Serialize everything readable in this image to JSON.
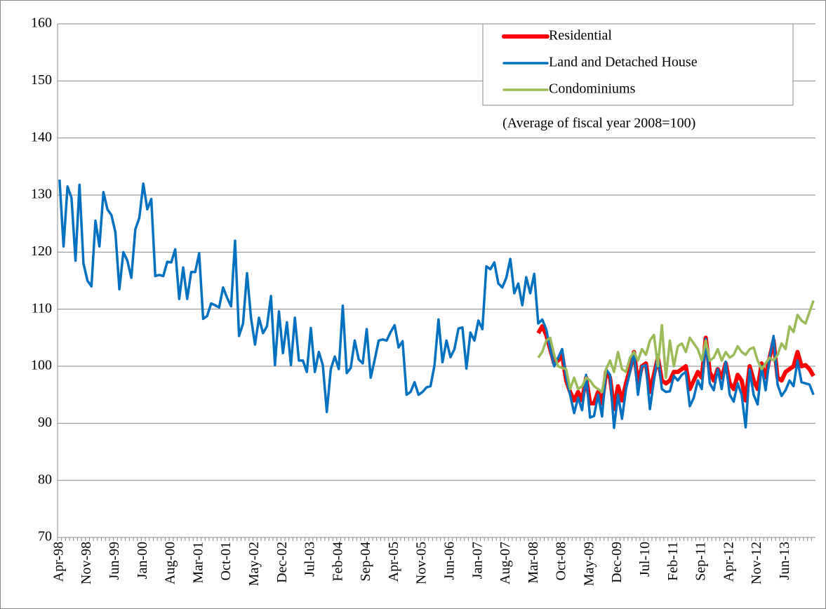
{
  "chart_data": {
    "type": "line",
    "annotation": "(Average of fiscal year 2008=100)",
    "categories": [
      "Apr-98",
      null,
      null,
      null,
      null,
      null,
      null,
      "Nov-98",
      null,
      null,
      null,
      null,
      null,
      null,
      "Jun-99",
      null,
      null,
      null,
      null,
      null,
      null,
      "Jan-00",
      null,
      null,
      null,
      null,
      null,
      null,
      "Aug-00",
      null,
      null,
      null,
      null,
      null,
      null,
      "Mar-01",
      null,
      null,
      null,
      null,
      null,
      null,
      "Oct-01",
      null,
      null,
      null,
      null,
      null,
      null,
      "May-02",
      null,
      null,
      null,
      null,
      null,
      null,
      "Dec-02",
      null,
      null,
      null,
      null,
      null,
      null,
      "Jul-03",
      null,
      null,
      null,
      null,
      null,
      null,
      "Feb-04",
      null,
      null,
      null,
      null,
      null,
      null,
      "Sep-04",
      null,
      null,
      null,
      null,
      null,
      null,
      "Apr-05",
      null,
      null,
      null,
      null,
      null,
      null,
      "Nov-05",
      null,
      null,
      null,
      null,
      null,
      null,
      "Jun-06",
      null,
      null,
      null,
      null,
      null,
      null,
      "Jan-07",
      null,
      null,
      null,
      null,
      null,
      null,
      "Aug-07",
      null,
      null,
      null,
      null,
      null,
      null,
      "Mar-08",
      null,
      null,
      null,
      null,
      null,
      null,
      "Oct-08",
      null,
      null,
      null,
      null,
      null,
      null,
      "May-09",
      null,
      null,
      null,
      null,
      null,
      null,
      "Dec-09",
      null,
      null,
      null,
      null,
      null,
      null,
      "Jul-10",
      null,
      null,
      null,
      null,
      null,
      null,
      "Feb-11",
      null,
      null,
      null,
      null,
      null,
      null,
      "Sep-11",
      null,
      null,
      null,
      null,
      null,
      null,
      "Apr-12",
      null,
      null,
      null,
      null,
      null,
      null,
      "Nov-12",
      null,
      null,
      null,
      null,
      null,
      null,
      "Jun-13",
      null,
      null,
      null,
      null,
      null,
      null,
      null
    ],
    "series": [
      {
        "name": "Residential",
        "color": "#ff0000",
        "width": 6,
        "values": [
          null,
          null,
          null,
          null,
          null,
          null,
          null,
          null,
          null,
          null,
          null,
          null,
          null,
          null,
          null,
          null,
          null,
          null,
          null,
          null,
          null,
          null,
          null,
          null,
          null,
          null,
          null,
          null,
          null,
          null,
          null,
          null,
          null,
          null,
          null,
          null,
          null,
          null,
          null,
          null,
          null,
          null,
          null,
          null,
          null,
          null,
          null,
          null,
          null,
          null,
          null,
          null,
          null,
          null,
          null,
          null,
          null,
          null,
          null,
          null,
          null,
          null,
          null,
          null,
          null,
          null,
          null,
          null,
          null,
          null,
          null,
          null,
          null,
          null,
          null,
          null,
          null,
          null,
          null,
          null,
          null,
          null,
          null,
          null,
          null,
          null,
          null,
          null,
          null,
          null,
          null,
          null,
          null,
          null,
          null,
          null,
          null,
          null,
          null,
          null,
          null,
          null,
          null,
          null,
          null,
          null,
          null,
          null,
          null,
          null,
          null,
          null,
          null,
          null,
          null,
          null,
          null,
          null,
          null,
          null,
          105.8,
          107,
          105.5,
          103,
          100.5,
          101,
          102,
          97.5,
          95.5,
          94,
          95.5,
          94,
          98,
          93.5,
          93.5,
          95.5,
          93.5,
          99,
          98,
          92.5,
          96.5,
          94,
          97,
          99.5,
          102.5,
          97,
          100,
          100.5,
          95.5,
          98.5,
          101.5,
          97.5,
          97,
          97.5,
          99,
          99,
          99.5,
          100,
          96,
          97.5,
          99,
          98,
          105,
          99,
          97.5,
          99.5,
          98,
          100.5,
          97,
          96,
          98.5,
          97.5,
          94,
          100,
          97.5,
          96,
          100.5,
          98,
          101.5,
          104.5,
          98,
          97.5,
          99,
          99.5,
          100,
          102.5,
          100,
          100.2,
          99.5,
          98.3
        ]
      },
      {
        "name": "Land and Detached House",
        "color": "#0070c0",
        "width": 3.5,
        "values": [
          132.7,
          121,
          131.5,
          129.5,
          118.5,
          131.8,
          118,
          115,
          114,
          125.5,
          121,
          130.5,
          127.5,
          126.5,
          123.5,
          113.5,
          120,
          118.5,
          115.5,
          124,
          126,
          132,
          127.5,
          129.3,
          115.8,
          116,
          115.8,
          118.3,
          118.2,
          120.5,
          111.8,
          117.3,
          111.8,
          116.5,
          116.5,
          119.8,
          108.3,
          108.8,
          111,
          110.7,
          110.3,
          113.8,
          112,
          110.5,
          122,
          105.3,
          107.5,
          116.3,
          108.5,
          103.8,
          108.5,
          105.8,
          107,
          112.3,
          100.2,
          109.6,
          102.3,
          107.7,
          100.2,
          108.5,
          101,
          101,
          99,
          106.7,
          99,
          102.5,
          100.2,
          92,
          99.5,
          101.7,
          99.5,
          110.6,
          98.8,
          99.7,
          104.5,
          101.2,
          100.5,
          106.5,
          98,
          101.1,
          104.5,
          104.7,
          104.5,
          106,
          107.2,
          103.3,
          104.4,
          95,
          95.5,
          97.2,
          95,
          95.5,
          96.3,
          96.5,
          100.2,
          108.2,
          100.7,
          104.5,
          101.6,
          103,
          106.6,
          106.8,
          99.6,
          105.9,
          104.5,
          108,
          106.5,
          117.5,
          117,
          118.2,
          114.5,
          113.8,
          115.5,
          118.8,
          112.8,
          114.5,
          110.7,
          115.6,
          112.8,
          116.2,
          107.5,
          108.2,
          106.5,
          103,
          100,
          101.5,
          103,
          98,
          95,
          91.8,
          94.5,
          92.3,
          98.5,
          91,
          91.3,
          95,
          91.2,
          99.5,
          98.5,
          89.2,
          95,
          90.8,
          96,
          99,
          102.5,
          95,
          100,
          100.2,
          92.5,
          97.5,
          102,
          96,
          95.5,
          95.6,
          98.3,
          97.5,
          98.5,
          99,
          93,
          94.5,
          97.5,
          96,
          104.8,
          97,
          95.8,
          99.5,
          96,
          100.8,
          95,
          93.8,
          97,
          95,
          89.3,
          99.5,
          95,
          93.3,
          100,
          95.8,
          101.5,
          105.3,
          96.8,
          94.8,
          95.8,
          97.5,
          96.5,
          101,
          97.2,
          97,
          96.8,
          95
        ]
      },
      {
        "name": "Condominiums",
        "color": "#9bbb59",
        "width": 3.5,
        "values": [
          null,
          null,
          null,
          null,
          null,
          null,
          null,
          null,
          null,
          null,
          null,
          null,
          null,
          null,
          null,
          null,
          null,
          null,
          null,
          null,
          null,
          null,
          null,
          null,
          null,
          null,
          null,
          null,
          null,
          null,
          null,
          null,
          null,
          null,
          null,
          null,
          null,
          null,
          null,
          null,
          null,
          null,
          null,
          null,
          null,
          null,
          null,
          null,
          null,
          null,
          null,
          null,
          null,
          null,
          null,
          null,
          null,
          null,
          null,
          null,
          null,
          null,
          null,
          null,
          null,
          null,
          null,
          null,
          null,
          null,
          null,
          null,
          null,
          null,
          null,
          null,
          null,
          null,
          null,
          null,
          null,
          null,
          null,
          null,
          null,
          null,
          null,
          null,
          null,
          null,
          null,
          null,
          null,
          null,
          null,
          null,
          null,
          null,
          null,
          null,
          null,
          null,
          null,
          null,
          null,
          null,
          null,
          null,
          null,
          null,
          null,
          null,
          null,
          null,
          null,
          null,
          null,
          null,
          null,
          null,
          101.5,
          102.5,
          104.5,
          105,
          102,
          100,
          99.7,
          99.5,
          96,
          98,
          96,
          96.5,
          98,
          97.5,
          96.5,
          96,
          95.5,
          99.5,
          101,
          99,
          102.5,
          99.5,
          99,
          101.5,
          102.5,
          101,
          103,
          102,
          104.5,
          105.5,
          100,
          107.2,
          98,
          104.5,
          100,
          103.5,
          104,
          102.5,
          105,
          104,
          103,
          101,
          104.5,
          101,
          101.5,
          103,
          101,
          102.5,
          101.5,
          102,
          103.5,
          102.5,
          102,
          103,
          103.3,
          101,
          99.5,
          100.5,
          101.5,
          101,
          102,
          104,
          103,
          107,
          106,
          109,
          108,
          107.5,
          109.5,
          111.5
        ]
      }
    ],
    "ylim": [
      70,
      160
    ],
    "yticks": [
      70,
      80,
      90,
      100,
      110,
      120,
      130,
      140,
      150,
      160
    ],
    "grid": true
  }
}
